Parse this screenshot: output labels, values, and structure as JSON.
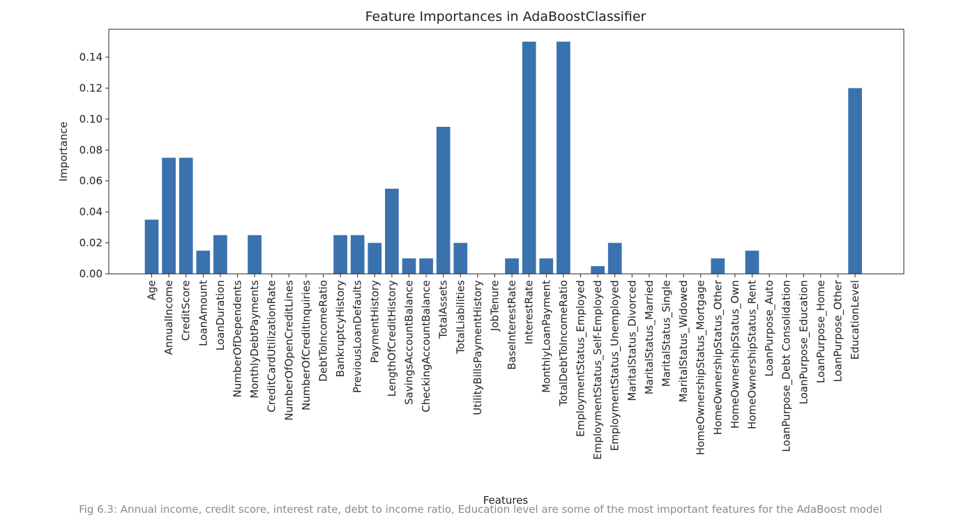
{
  "chart_data": {
    "type": "bar",
    "title": "Feature Importances in AdaBoostClassifier",
    "xlabel": "Features",
    "ylabel": "Importance",
    "ylim": [
      0,
      0.158
    ],
    "yticks": [
      0.0,
      0.02,
      0.04,
      0.06,
      0.08,
      0.1,
      0.12,
      0.14
    ],
    "ytick_labels": [
      "0.00",
      "0.02",
      "0.04",
      "0.06",
      "0.08",
      "0.10",
      "0.12",
      "0.14"
    ],
    "grid": false,
    "bar_color": "#3a72ae",
    "categories": [
      "Age",
      "AnnualIncome",
      "CreditScore",
      "LoanAmount",
      "LoanDuration",
      "NumberOfDependents",
      "MonthlyDebtPayments",
      "CreditCardUtilizationRate",
      "NumberOfOpenCreditLines",
      "NumberOfCreditInquiries",
      "DebtToIncomeRatio",
      "BankruptcyHistory",
      "PreviousLoanDefaults",
      "PaymentHistory",
      "LengthOfCreditHistory",
      "SavingsAccountBalance",
      "CheckingAccountBalance",
      "TotalAssets",
      "TotalLiabilities",
      "UtilityBillsPaymentHistory",
      "JobTenure",
      "BaseInterestRate",
      "InterestRate",
      "MonthlyLoanPayment",
      "TotalDebtToIncomeRatio",
      "EmploymentStatus_Employed",
      "EmploymentStatus_Self-Employed",
      "EmploymentStatus_Unemployed",
      "MaritalStatus_Divorced",
      "MaritalStatus_Married",
      "MaritalStatus_Single",
      "MaritalStatus_Widowed",
      "HomeOwnershipStatus_Mortgage",
      "HomeOwnershipStatus_Other",
      "HomeOwnershipStatus_Own",
      "HomeOwnershipStatus_Rent",
      "LoanPurpose_Auto",
      "LoanPurpose_Debt Consolidation",
      "LoanPurpose_Education",
      "LoanPurpose_Home",
      "LoanPurpose_Other",
      "EducationLevel"
    ],
    "values": [
      0.035,
      0.075,
      0.075,
      0.015,
      0.025,
      0.0,
      0.025,
      0.0,
      0.0,
      0.0,
      0.0,
      0.025,
      0.025,
      0.02,
      0.055,
      0.01,
      0.01,
      0.095,
      0.02,
      0.0,
      0.0,
      0.01,
      0.15,
      0.01,
      0.15,
      0.0,
      0.005,
      0.02,
      0.0,
      0.0,
      0.0,
      0.0,
      0.0,
      0.01,
      0.0,
      0.015,
      0.0,
      0.0,
      0.0,
      0.0,
      0.0,
      0.12
    ]
  },
  "caption": "Fig 6.3: Annual income, credit score, interest rate, debt to income ratio, Education level are some of the most important features for the AdaBoost model"
}
